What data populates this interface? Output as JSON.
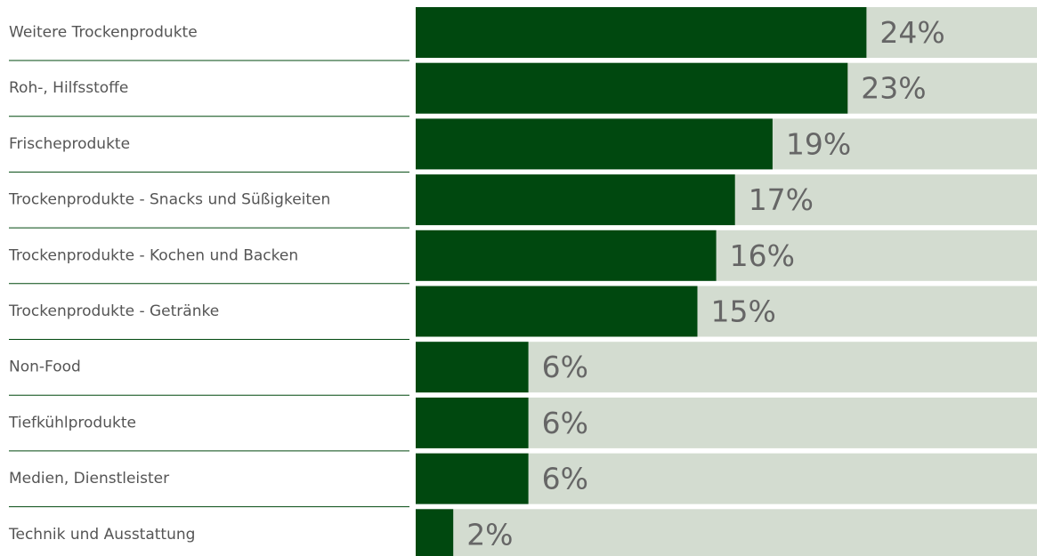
{
  "chart_data": {
    "type": "bar",
    "orientation": "horizontal",
    "categories": [
      "Weitere Trockenprodukte",
      "Roh-, Hilfsstoffe",
      "Frischeprodukte",
      "Trockenprodukte - Snacks und Süßigkeiten",
      "Trockenprodukte - Kochen und Backen",
      "Trockenprodukte - Getränke",
      "Non-Food",
      "Tiefkühlprodukte",
      "Medien, Dienstleister",
      "Technik und Ausstattung"
    ],
    "values": [
      24,
      23,
      19,
      17,
      16,
      15,
      6,
      6,
      6,
      2
    ],
    "value_labels": [
      "24%",
      "23%",
      "19%",
      "17%",
      "16%",
      "15%",
      "6%",
      "6%",
      "6%",
      "2%"
    ],
    "color": "#00480f",
    "track_color": "#d3dcd0"
  }
}
